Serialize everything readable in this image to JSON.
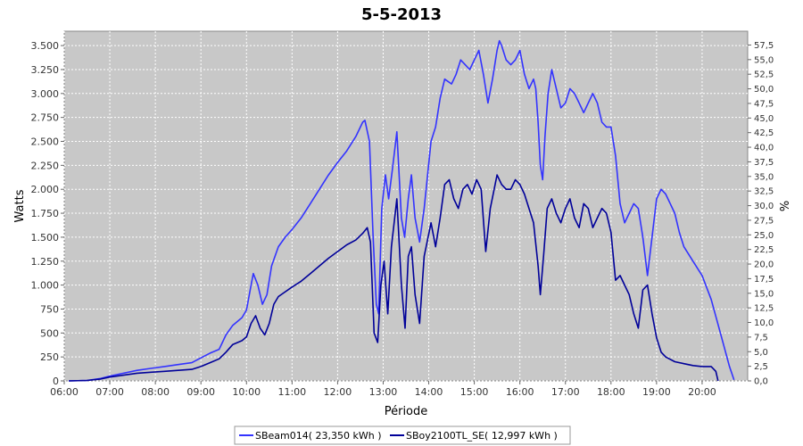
{
  "chart_data": {
    "type": "line",
    "title": "5-5-2013",
    "xlabel": "Période",
    "ylabel": "Watts",
    "y2label": "%",
    "xlim": [
      6.0,
      21.0
    ],
    "ylim": [
      0,
      3650
    ],
    "y2lim": [
      0,
      59.86
    ],
    "grid": true,
    "legend_position": "bottom",
    "x_ticks": [
      6,
      7,
      8,
      9,
      10,
      11,
      12,
      13,
      14,
      15,
      16,
      17,
      18,
      19,
      20
    ],
    "x_tick_labels": [
      "06:00",
      "07:00",
      "08:00",
      "09:00",
      "10:00",
      "11:00",
      "12:00",
      "13:00",
      "14:00",
      "15:00",
      "16:00",
      "17:00",
      "18:00",
      "19:00",
      "20:00"
    ],
    "y_ticks": [
      0,
      250,
      500,
      750,
      1000,
      1250,
      1500,
      1750,
      2000,
      2250,
      2500,
      2750,
      3000,
      3250,
      3500
    ],
    "y_tick_labels": [
      "0",
      "250",
      "500",
      "750",
      "1.000",
      "1.250",
      "1.500",
      "1.750",
      "2.000",
      "2.250",
      "2.500",
      "2.750",
      "3.000",
      "3.250",
      "3.500"
    ],
    "y2_ticks": [
      0,
      2.5,
      5,
      7.5,
      10,
      12.5,
      15,
      17.5,
      20,
      22.5,
      25,
      27.5,
      30,
      32.5,
      35,
      37.5,
      40,
      42.5,
      45,
      47.5,
      50,
      52.5,
      55,
      57.5
    ],
    "y2_tick_labels": [
      "0,0",
      "2,5",
      "5,0",
      "7,5",
      "10,0",
      "12,5",
      "15,0",
      "17,5",
      "20,0",
      "22,5",
      "25,0",
      "27,5",
      "30,0",
      "32,5",
      "35,0",
      "37,5",
      "40,0",
      "42,5",
      "45,0",
      "47,5",
      "50,0",
      "52,5",
      "55,0",
      "57,5"
    ],
    "series": [
      {
        "name": "SBeam014( 23,350 kWh )",
        "color": "#3333ff",
        "points": [
          [
            6.1,
            0
          ],
          [
            6.5,
            5
          ],
          [
            6.8,
            25
          ],
          [
            7.0,
            50
          ],
          [
            7.3,
            80
          ],
          [
            7.6,
            110
          ],
          [
            7.9,
            130
          ],
          [
            8.2,
            150
          ],
          [
            8.5,
            170
          ],
          [
            8.8,
            190
          ],
          [
            9.0,
            240
          ],
          [
            9.2,
            290
          ],
          [
            9.4,
            330
          ],
          [
            9.55,
            480
          ],
          [
            9.7,
            580
          ],
          [
            9.9,
            660
          ],
          [
            10.0,
            740
          ],
          [
            10.1,
            1000
          ],
          [
            10.15,
            1120
          ],
          [
            10.25,
            1000
          ],
          [
            10.35,
            800
          ],
          [
            10.45,
            900
          ],
          [
            10.55,
            1200
          ],
          [
            10.7,
            1400
          ],
          [
            10.85,
            1500
          ],
          [
            11.0,
            1580
          ],
          [
            11.2,
            1700
          ],
          [
            11.4,
            1850
          ],
          [
            11.6,
            2000
          ],
          [
            11.8,
            2150
          ],
          [
            12.0,
            2280
          ],
          [
            12.2,
            2400
          ],
          [
            12.4,
            2550
          ],
          [
            12.55,
            2700
          ],
          [
            12.6,
            2720
          ],
          [
            12.7,
            2500
          ],
          [
            12.78,
            1500
          ],
          [
            12.85,
            800
          ],
          [
            12.9,
            700
          ],
          [
            12.97,
            1800
          ],
          [
            13.05,
            2150
          ],
          [
            13.12,
            1900
          ],
          [
            13.2,
            2200
          ],
          [
            13.3,
            2600
          ],
          [
            13.4,
            1700
          ],
          [
            13.47,
            1500
          ],
          [
            13.55,
            1900
          ],
          [
            13.62,
            2150
          ],
          [
            13.7,
            1700
          ],
          [
            13.8,
            1450
          ],
          [
            13.9,
            1800
          ],
          [
            14.05,
            2500
          ],
          [
            14.15,
            2650
          ],
          [
            14.25,
            2950
          ],
          [
            14.35,
            3150
          ],
          [
            14.5,
            3100
          ],
          [
            14.6,
            3200
          ],
          [
            14.7,
            3350
          ],
          [
            14.8,
            3300
          ],
          [
            14.9,
            3250
          ],
          [
            15.0,
            3350
          ],
          [
            15.1,
            3450
          ],
          [
            15.2,
            3200
          ],
          [
            15.3,
            2900
          ],
          [
            15.4,
            3150
          ],
          [
            15.5,
            3450
          ],
          [
            15.55,
            3550
          ],
          [
            15.6,
            3500
          ],
          [
            15.7,
            3350
          ],
          [
            15.8,
            3300
          ],
          [
            15.9,
            3350
          ],
          [
            16.0,
            3450
          ],
          [
            16.1,
            3200
          ],
          [
            16.2,
            3050
          ],
          [
            16.3,
            3150
          ],
          [
            16.35,
            3050
          ],
          [
            16.4,
            2700
          ],
          [
            16.45,
            2250
          ],
          [
            16.5,
            2100
          ],
          [
            16.55,
            2550
          ],
          [
            16.62,
            3000
          ],
          [
            16.7,
            3250
          ],
          [
            16.8,
            3050
          ],
          [
            16.9,
            2850
          ],
          [
            17.0,
            2900
          ],
          [
            17.1,
            3050
          ],
          [
            17.2,
            3000
          ],
          [
            17.3,
            2900
          ],
          [
            17.4,
            2800
          ],
          [
            17.5,
            2900
          ],
          [
            17.6,
            3000
          ],
          [
            17.7,
            2900
          ],
          [
            17.8,
            2700
          ],
          [
            17.9,
            2650
          ],
          [
            18.0,
            2650
          ],
          [
            18.1,
            2350
          ],
          [
            18.2,
            1850
          ],
          [
            18.3,
            1650
          ],
          [
            18.4,
            1750
          ],
          [
            18.5,
            1850
          ],
          [
            18.6,
            1800
          ],
          [
            18.7,
            1500
          ],
          [
            18.8,
            1100
          ],
          [
            18.9,
            1500
          ],
          [
            19.0,
            1900
          ],
          [
            19.1,
            2000
          ],
          [
            19.2,
            1950
          ],
          [
            19.3,
            1850
          ],
          [
            19.4,
            1750
          ],
          [
            19.5,
            1550
          ],
          [
            19.6,
            1400
          ],
          [
            19.8,
            1250
          ],
          [
            20.0,
            1100
          ],
          [
            20.2,
            850
          ],
          [
            20.4,
            500
          ],
          [
            20.6,
            150
          ],
          [
            20.7,
            10
          ]
        ]
      },
      {
        "name": "SBoy2100TL_SE( 12,997 kWh )",
        "color": "#000099",
        "points": [
          [
            6.1,
            0
          ],
          [
            6.5,
            5
          ],
          [
            6.8,
            20
          ],
          [
            7.0,
            40
          ],
          [
            7.3,
            60
          ],
          [
            7.6,
            80
          ],
          [
            7.9,
            90
          ],
          [
            8.2,
            100
          ],
          [
            8.5,
            110
          ],
          [
            8.8,
            120
          ],
          [
            9.0,
            150
          ],
          [
            9.2,
            190
          ],
          [
            9.4,
            230
          ],
          [
            9.55,
            300
          ],
          [
            9.7,
            380
          ],
          [
            9.9,
            420
          ],
          [
            10.0,
            460
          ],
          [
            10.1,
            600
          ],
          [
            10.2,
            680
          ],
          [
            10.3,
            550
          ],
          [
            10.4,
            480
          ],
          [
            10.5,
            600
          ],
          [
            10.6,
            800
          ],
          [
            10.7,
            880
          ],
          [
            10.85,
            930
          ],
          [
            11.0,
            980
          ],
          [
            11.2,
            1040
          ],
          [
            11.4,
            1120
          ],
          [
            11.6,
            1200
          ],
          [
            11.8,
            1280
          ],
          [
            12.0,
            1350
          ],
          [
            12.2,
            1420
          ],
          [
            12.4,
            1470
          ],
          [
            12.55,
            1540
          ],
          [
            12.65,
            1600
          ],
          [
            12.72,
            1450
          ],
          [
            12.8,
            500
          ],
          [
            12.88,
            400
          ],
          [
            12.95,
            1000
          ],
          [
            13.02,
            1250
          ],
          [
            13.1,
            700
          ],
          [
            13.18,
            1400
          ],
          [
            13.3,
            1900
          ],
          [
            13.4,
            1000
          ],
          [
            13.48,
            550
          ],
          [
            13.55,
            1300
          ],
          [
            13.62,
            1400
          ],
          [
            13.7,
            900
          ],
          [
            13.8,
            600
          ],
          [
            13.9,
            1300
          ],
          [
            14.05,
            1650
          ],
          [
            14.15,
            1400
          ],
          [
            14.25,
            1700
          ],
          [
            14.35,
            2050
          ],
          [
            14.45,
            2100
          ],
          [
            14.55,
            1900
          ],
          [
            14.65,
            1800
          ],
          [
            14.75,
            2000
          ],
          [
            14.85,
            2050
          ],
          [
            14.95,
            1950
          ],
          [
            15.05,
            2100
          ],
          [
            15.15,
            2000
          ],
          [
            15.25,
            1350
          ],
          [
            15.35,
            1800
          ],
          [
            15.5,
            2150
          ],
          [
            15.6,
            2050
          ],
          [
            15.7,
            2000
          ],
          [
            15.8,
            2000
          ],
          [
            15.9,
            2100
          ],
          [
            16.0,
            2050
          ],
          [
            16.1,
            1950
          ],
          [
            16.2,
            1800
          ],
          [
            16.3,
            1650
          ],
          [
            16.4,
            1200
          ],
          [
            16.45,
            900
          ],
          [
            16.52,
            1300
          ],
          [
            16.6,
            1800
          ],
          [
            16.7,
            1900
          ],
          [
            16.8,
            1750
          ],
          [
            16.9,
            1650
          ],
          [
            17.0,
            1800
          ],
          [
            17.1,
            1900
          ],
          [
            17.2,
            1700
          ],
          [
            17.3,
            1600
          ],
          [
            17.4,
            1850
          ],
          [
            17.5,
            1800
          ],
          [
            17.6,
            1600
          ],
          [
            17.7,
            1700
          ],
          [
            17.8,
            1800
          ],
          [
            17.9,
            1750
          ],
          [
            18.0,
            1550
          ],
          [
            18.1,
            1050
          ],
          [
            18.2,
            1100
          ],
          [
            18.3,
            1000
          ],
          [
            18.4,
            900
          ],
          [
            18.5,
            700
          ],
          [
            18.6,
            550
          ],
          [
            18.7,
            950
          ],
          [
            18.8,
            1000
          ],
          [
            18.9,
            700
          ],
          [
            19.0,
            450
          ],
          [
            19.1,
            300
          ],
          [
            19.2,
            250
          ],
          [
            19.4,
            200
          ],
          [
            19.6,
            180
          ],
          [
            19.8,
            160
          ],
          [
            20.0,
            150
          ],
          [
            20.2,
            150
          ],
          [
            20.3,
            100
          ],
          [
            20.35,
            0
          ]
        ]
      }
    ]
  }
}
